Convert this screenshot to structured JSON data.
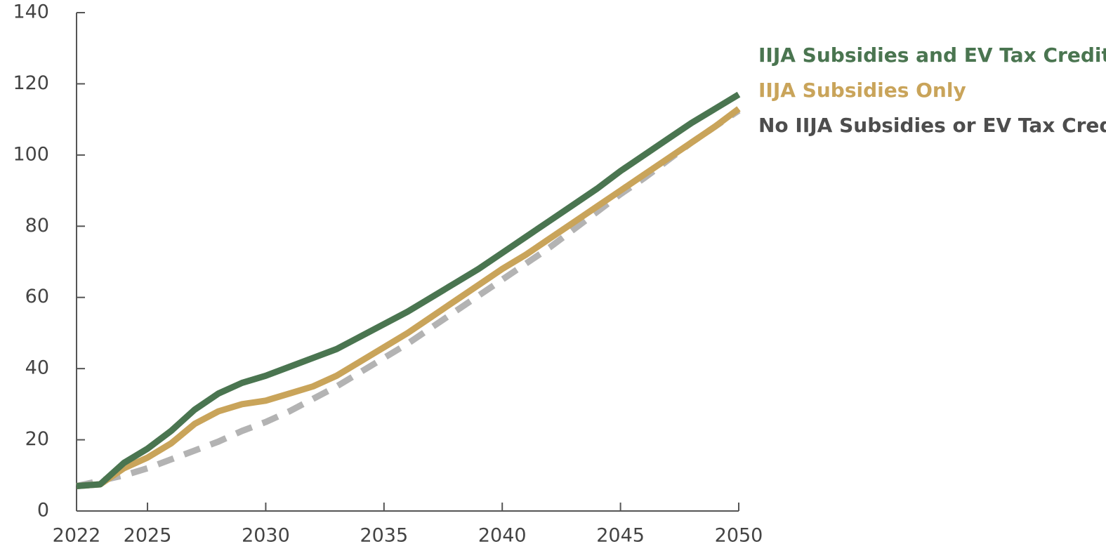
{
  "chart_data": {
    "type": "line",
    "x": [
      2022,
      2023,
      2024,
      2025,
      2026,
      2027,
      2028,
      2029,
      2030,
      2031,
      2032,
      2033,
      2034,
      2035,
      2036,
      2037,
      2038,
      2039,
      2040,
      2041,
      2042,
      2043,
      2044,
      2045,
      2046,
      2047,
      2048,
      2049,
      2050
    ],
    "series": [
      {
        "name": "IIJA Subsidies and EV Tax Credits",
        "color": "#4a7550",
        "values": [
          7,
          7.5,
          13.5,
          17.5,
          22.5,
          28.5,
          33,
          36,
          38,
          40.5,
          43,
          45.5,
          49,
          52.5,
          56,
          60,
          64,
          68,
          72.5,
          77,
          81.5,
          86,
          90.5,
          95.5,
          100,
          104.5,
          109,
          113,
          117
        ]
      },
      {
        "name": "IIJA Subsidies Only",
        "color": "#c9a45a",
        "values": [
          7,
          7.5,
          12,
          15,
          19,
          24.5,
          28,
          30,
          31,
          33,
          35,
          38,
          42,
          46,
          50,
          54.5,
          59,
          63.5,
          68,
          72,
          76.5,
          81,
          85.5,
          90,
          94.5,
          99,
          103.5,
          108,
          113
        ]
      },
      {
        "name": "No IIJA Subsidies or EV Tax Credits",
        "color": "#b3b3b3",
        "dashed": true,
        "values": [
          7,
          8.5,
          10,
          12,
          14.5,
          17,
          19.5,
          22.5,
          25,
          28,
          31.5,
          35,
          39,
          43,
          47,
          51.5,
          56,
          60.5,
          65,
          69.5,
          74,
          79,
          84,
          89,
          93.5,
          98.5,
          103.5,
          108,
          112.5
        ]
      }
    ],
    "xlim": [
      2022,
      2050
    ],
    "xticks": [
      2022,
      2025,
      2030,
      2035,
      2040,
      2045,
      2050
    ],
    "ylim": [
      0,
      140
    ],
    "yticks": [
      0,
      20,
      40,
      60,
      80,
      100,
      120,
      140
    ]
  }
}
